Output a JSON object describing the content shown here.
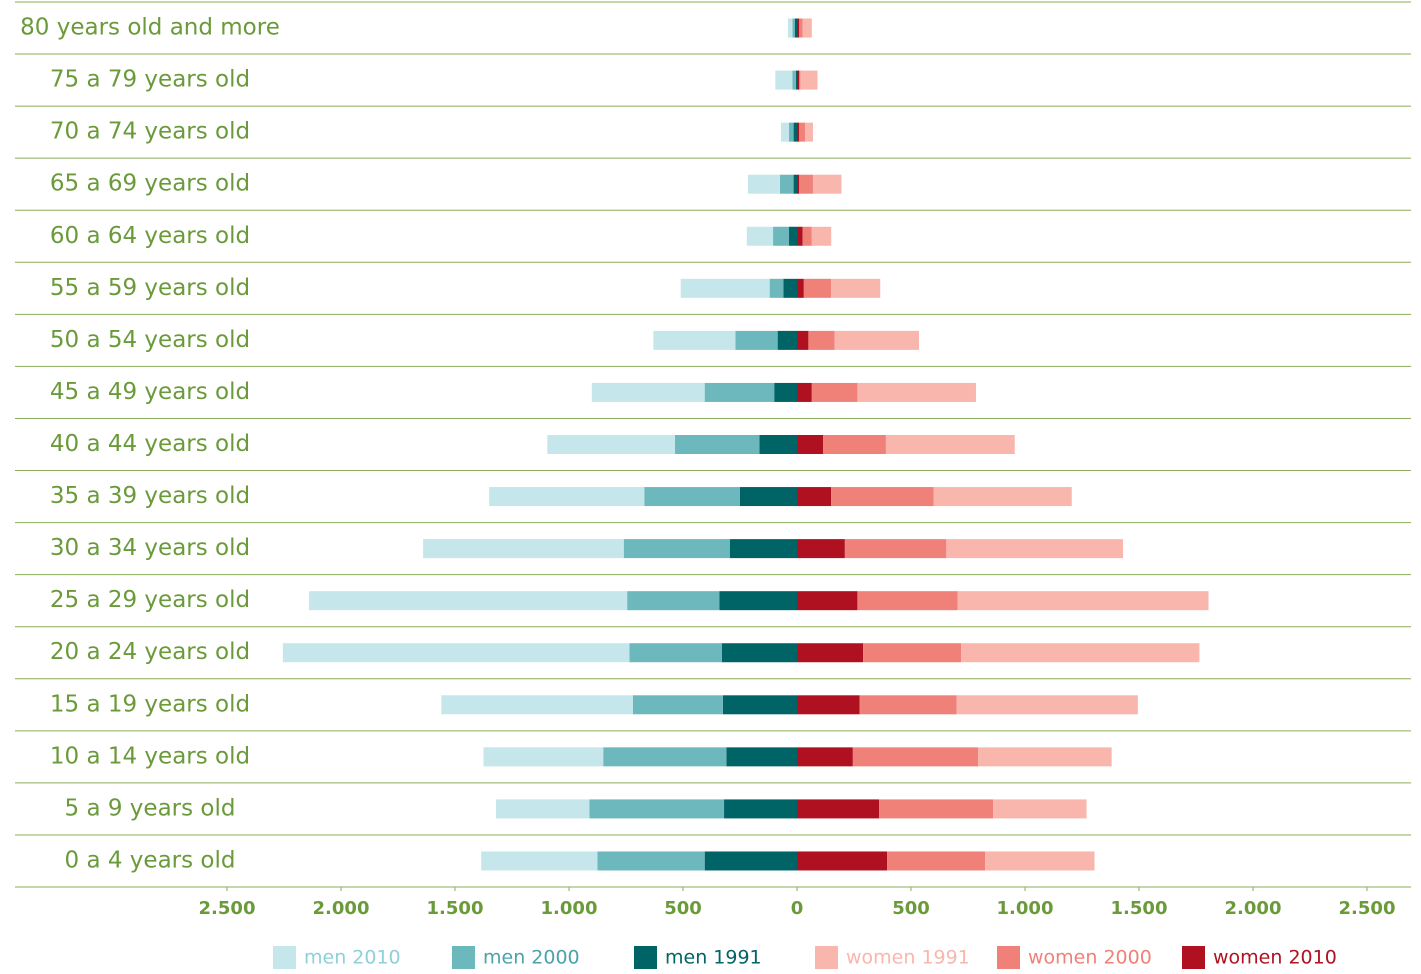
{
  "chart_data": {
    "type": "population-pyramid",
    "categories": [
      "80  years old and more",
      "75 a 79 years old",
      "70 a 74 years old",
      "65 a 69 years old",
      "60 a 64 years old",
      "55 a 59 years old",
      "50 a 54 years old",
      "45 a 49 years old",
      "40 a 44 years old",
      "35 a 39 years old",
      "30 a 34 years old",
      "25 a 29 years old",
      "20 a 24 years old",
      "15 a 19 years old",
      "10 a 14 years old",
      "5 a 9 years old",
      "0 a 4 years old"
    ],
    "series": [
      {
        "name": "men 2010",
        "color": "#c5e6ea",
        "values": [
          20,
          75,
          35,
          140,
          115,
          390,
          360,
          495,
          560,
          680,
          880,
          1395,
          1520,
          840,
          525,
          410,
          510
        ]
      },
      {
        "name": "men 2000",
        "color": "#6cb8bd",
        "values": [
          10,
          15,
          20,
          60,
          70,
          60,
          185,
          305,
          370,
          420,
          465,
          405,
          405,
          395,
          540,
          590,
          470
        ]
      },
      {
        "name": "men 1991",
        "color": "#006466",
        "values": [
          10,
          5,
          15,
          15,
          35,
          60,
          85,
          100,
          165,
          250,
          295,
          340,
          330,
          325,
          310,
          320,
          405
        ]
      },
      {
        "name": "women 1991",
        "color": "#f9b6ac",
        "values": [
          40,
          75,
          35,
          125,
          85,
          215,
          370,
          520,
          565,
          605,
          775,
          1100,
          1045,
          795,
          585,
          410,
          480
        ]
      },
      {
        "name": "women 2000",
        "color": "#ef8179",
        "values": [
          15,
          5,
          25,
          60,
          40,
          120,
          115,
          200,
          275,
          450,
          445,
          440,
          430,
          425,
          550,
          500,
          430
        ]
      },
      {
        "name": "women 2010",
        "color": "#b01120",
        "values": [
          10,
          10,
          10,
          10,
          25,
          30,
          50,
          65,
          115,
          150,
          210,
          265,
          290,
          275,
          245,
          360,
          395
        ]
      }
    ],
    "xlim": [
      -2500,
      2500
    ],
    "xticks": [
      {
        "value": -2500,
        "label": "2.500"
      },
      {
        "value": -2000,
        "label": "2.000"
      },
      {
        "value": -1500,
        "label": "1.500"
      },
      {
        "value": -1000,
        "label": "1.000"
      },
      {
        "value": -500,
        "label": "500"
      },
      0,
      500,
      {
        "value": 1000,
        "label": "1.000"
      },
      {
        "value": 1500,
        "label": "1.500"
      },
      {
        "value": 2000,
        "label": "2.000"
      },
      {
        "value": 2500,
        "label": "2.500"
      }
    ]
  }
}
